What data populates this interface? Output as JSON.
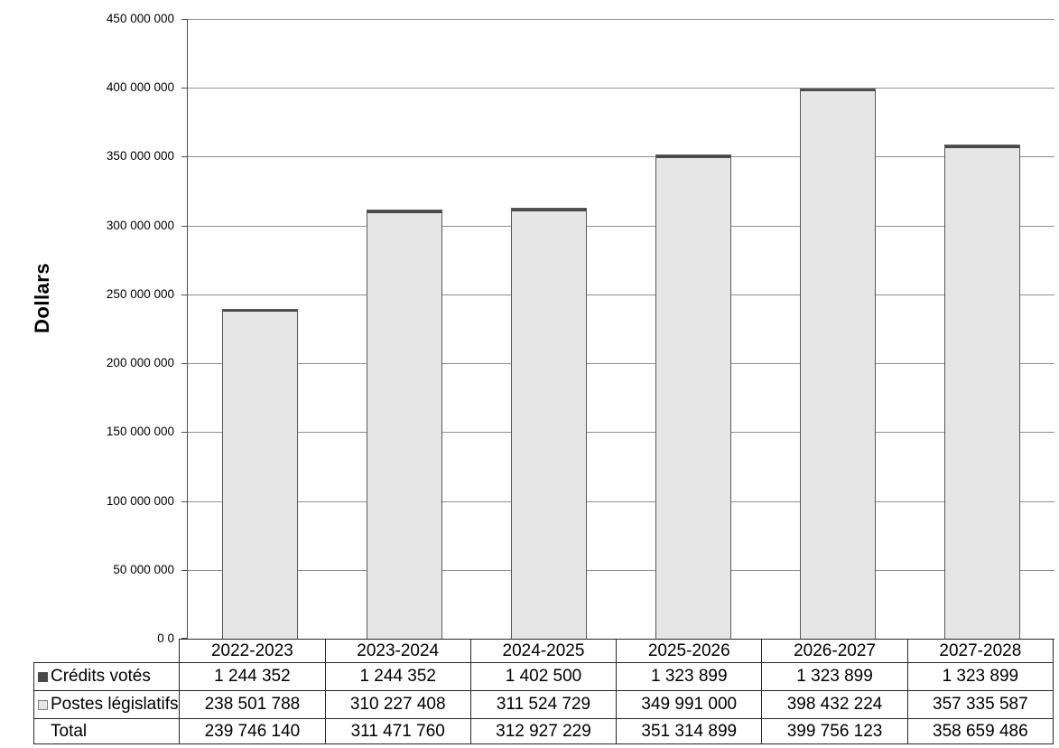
{
  "chart_data": {
    "type": "bar",
    "stacked": true,
    "title": "",
    "ylabel": "Dollars",
    "xlabel": "",
    "categories": [
      "2022-2023",
      "2023-2024",
      "2024-2025",
      "2025-2026",
      "2026-2027",
      "2027-2028"
    ],
    "series": [
      {
        "name": "Crédits votés",
        "color": "#4a4a4a",
        "values": [
          1244352,
          1244352,
          1402500,
          1323899,
          1323899,
          1323899
        ]
      },
      {
        "name": "Postes législatifs",
        "color": "#e6e6e6",
        "border_color": "#595959",
        "values": [
          238501788,
          310227408,
          311524729,
          349991000,
          398432224,
          357335587
        ]
      }
    ],
    "totals": [
      239746140,
      311471760,
      312927229,
      351314899,
      399756123,
      358659486
    ],
    "ylim": [
      0,
      450000000
    ],
    "ytick_interval": 50000000,
    "ytick_labels_top_to_bottom": [
      "450 000 000",
      "400 000 000",
      "350 000 000",
      "300 000 000",
      "250 000 000",
      "200 000 000",
      "150 000 000",
      "100 000 000",
      "50 000 000",
      "0 0"
    ],
    "grid": true,
    "gridline_color": "#8f8f8f",
    "axis_color": "#4d4d4d",
    "legend_position": "table-left"
  },
  "table": {
    "rows": [
      {
        "label": "Crédits votés",
        "marker": "filled-dark",
        "values": [
          "1 244 352",
          "1 244 352",
          "1 402 500",
          "1 323 899",
          "1 323 899",
          "1 323 899"
        ]
      },
      {
        "label": "Postes législatifs",
        "marker": "light-outline",
        "values": [
          "238 501 788",
          "310 227 408",
          "311 524 729",
          "349 991 000",
          "398 432 224",
          "357 335 587"
        ]
      },
      {
        "label": "Total",
        "marker": "none",
        "values": [
          "239 746 140",
          "311 471 760",
          "312 927 229",
          "351 314 899",
          "399 756 123",
          "358 659 486"
        ]
      }
    ]
  }
}
